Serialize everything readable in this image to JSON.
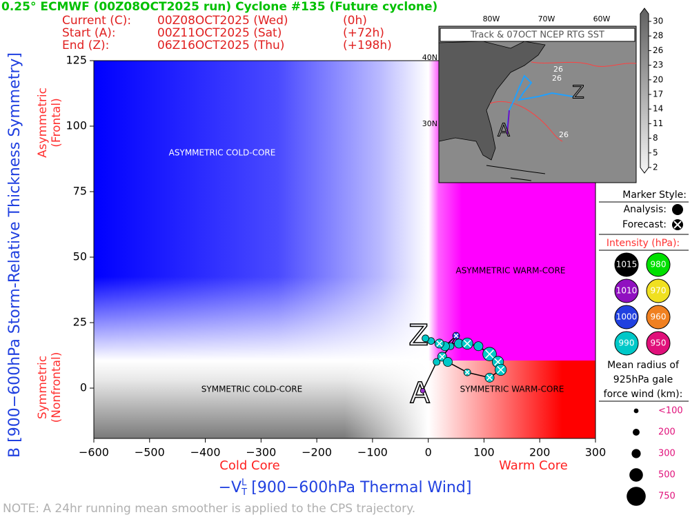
{
  "header": {
    "title": "0.25° ECMWF (00Z08OCT2025 run) Cyclone #135 (Future cyclone)",
    "rows": [
      [
        "Current (C):",
        "00Z08OCT2025 (Wed)",
        "(0h)"
      ],
      [
        "Start (A):",
        "00Z11OCT2025 (Sat)",
        "(+72h)"
      ],
      [
        "End (Z):",
        "06Z16OCT2025 (Thu)",
        "(+198h)"
      ]
    ]
  },
  "chart_data": {
    "type": "scatter",
    "xlabel": {
      "main": "−V",
      "sub": "T",
      "sup": "L",
      "rest": " [900−600hPa Thermal Wind]"
    },
    "ylabel": "B [900−600hPa Storm-Relative Thickness Symmetry]",
    "x_side_labels": [
      "Cold Core",
      "Warm Core"
    ],
    "y_side_labels": [
      [
        "Asymmetric",
        "(Frontal)"
      ],
      [
        "Symmetric",
        "(Nonfrontal)"
      ]
    ],
    "quadrants": [
      "ASYMMETRIC COLD-CORE",
      "ASYMMETRIC WARM-CORE",
      "SYMMETRIC COLD-CORE",
      "SYMMETRIC WARM-CORE"
    ],
    "xlim": [
      -600,
      300
    ],
    "ylim": [
      -19.2,
      125
    ],
    "xticks": [
      {
        "value": -600,
        "label": "−600"
      },
      {
        "value": -500,
        "label": "−500"
      },
      {
        "value": -400,
        "label": "−400"
      },
      {
        "value": -300,
        "label": "−300"
      },
      {
        "value": -200,
        "label": "−200"
      },
      {
        "value": -100,
        "label": "−100"
      },
      0,
      100,
      200,
      300
    ],
    "yticks": [
      0,
      25,
      50,
      75,
      100,
      125
    ],
    "start_label": "A",
    "end_label": "Z",
    "x": [
      -10,
      15,
      25,
      40,
      50,
      30,
      5,
      -5,
      20,
      55,
      70,
      90,
      110,
      125,
      130,
      110,
      70,
      35
    ],
    "values": [
      -1,
      10,
      12,
      16,
      20,
      16,
      18,
      19,
      17,
      17,
      17,
      16,
      13,
      10,
      7,
      4,
      6,
      10
    ],
    "sizes": [
      100,
      200,
      300,
      200,
      200,
      300,
      200,
      200,
      300,
      300,
      400,
      300,
      500,
      400,
      400,
      300,
      200,
      300
    ],
    "colors": [
      "#9932cc",
      "#00c8c8",
      "#00c8c8",
      "#00c8c8",
      "#2040e0",
      "#00c8c8",
      "#00c8c8",
      "#00c8c8",
      "#00c8c8",
      "#00c8c8",
      "#00c8c8",
      "#00c8c8",
      "#00c8c8",
      "#00c8c8",
      "#00c8c8",
      "#00c8c8",
      "#00c8c8",
      "#00c8c8"
    ],
    "forecast": [
      false,
      false,
      true,
      false,
      true,
      false,
      false,
      false,
      true,
      false,
      true,
      false,
      true,
      true,
      true,
      true,
      true,
      false
    ],
    "line_color": "#000000"
  },
  "legend": {
    "marker_title": "Marker Style:",
    "analysis": "Analysis:",
    "forecast": "Forecast:",
    "intensity_title": "Intensity (hPa):",
    "intensity": [
      {
        "value": 1015,
        "color": "#000000"
      },
      {
        "value": 980,
        "color": "#00e000"
      },
      {
        "value": 1010,
        "color": "#9010c0"
      },
      {
        "value": 970,
        "color": "#f0e020"
      },
      {
        "value": 1000,
        "color": "#2040e0"
      },
      {
        "value": 960,
        "color": "#f08020"
      },
      {
        "value": 990,
        "color": "#00c8c8"
      },
      {
        "value": 950,
        "color": "#e0107a"
      }
    ],
    "radius_title": [
      "Mean radius of",
      "925hPa gale",
      "force wind (km):"
    ],
    "radii": [
      {
        "value": 100,
        "label": "<100"
      },
      200,
      300,
      500,
      750
    ]
  },
  "inset": {
    "title": "Track & 07OCT NCEP RTG SST",
    "lon_labels": [
      "80W",
      "70W",
      "60W"
    ],
    "lat_labels": [
      "40N",
      "30N"
    ],
    "contour_labels": [
      "26",
      "26",
      "26"
    ],
    "colorbar_ticks": [
      30,
      28,
      26,
      23,
      20,
      17,
      14,
      11,
      8,
      5,
      2
    ]
  },
  "note": "NOTE:  A 24hr running mean smoother is applied to the CPS trajectory."
}
